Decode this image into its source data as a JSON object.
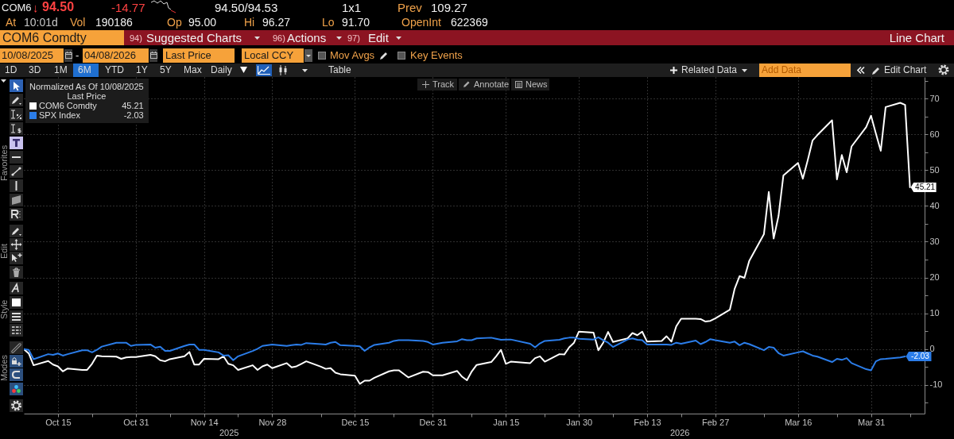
{
  "chart_data": {
    "type": "line",
    "legend_title": "Normalized As Of 10/08/2025\nLast Price",
    "legend": "top left",
    "grid": true,
    "xlim": [
      "2025-10-08",
      "2026-04-11"
    ],
    "xticks": [
      {
        "value": "2025-10-15",
        "label": "Oct 15"
      },
      {
        "value": "2025-10-22",
        "label": null
      },
      {
        "value": "2025-10-31",
        "label": "Oct 31"
      },
      {
        "value": "2025-11-07",
        "label": null
      },
      {
        "value": "2025-11-14",
        "label": "Nov 14"
      },
      {
        "value": "2025-11-21",
        "label": null
      },
      {
        "value": "2025-11-28",
        "label": "Nov 28"
      },
      {
        "value": "2025-12-08",
        "label": null
      },
      {
        "value": "2025-12-15",
        "label": "Dec 15"
      },
      {
        "value": "2025-12-23",
        "label": null
      },
      {
        "value": "2025-12-31",
        "label": "Dec 31"
      },
      {
        "value": "2026-01-08",
        "label": null
      },
      {
        "value": "2026-01-15",
        "label": "Jan 15"
      },
      {
        "value": "2026-01-23",
        "label": null
      },
      {
        "value": "2026-01-30",
        "label": "Jan 30"
      },
      {
        "value": "2026-02-06",
        "label": null
      },
      {
        "value": "2026-02-13",
        "label": "Feb 13"
      },
      {
        "value": "2026-02-20",
        "label": null
      },
      {
        "value": "2026-02-27",
        "label": "Feb 27"
      },
      {
        "value": "2026-03-09",
        "label": null
      },
      {
        "value": "2026-03-16",
        "label": "Mar 16"
      },
      {
        "value": "2026-03-24",
        "label": null
      },
      {
        "value": "2026-03-31",
        "label": "Mar 31"
      },
      {
        "value": "2026-04-08",
        "label": null
      }
    ],
    "ylim": [
      -18,
      76
    ],
    "yticks": [
      {
        "value": -15,
        "label": null
      },
      -10,
      {
        "value": -5,
        "label": null
      },
      0,
      {
        "value": 5,
        "label": null
      },
      10,
      {
        "value": 15,
        "label": null
      },
      20,
      {
        "value": 25,
        "label": null
      },
      30,
      {
        "value": 35,
        "label": null
      },
      40,
      {
        "value": 45,
        "label": null
      },
      50,
      {
        "value": 55,
        "label": null
      },
      60,
      {
        "value": 65,
        "label": null
      },
      70,
      {
        "value": 75,
        "label": null
      }
    ],
    "series": [
      {
        "name": "COM6 Comdty",
        "color": "#ffffff",
        "x": [
          "2025-10-08",
          "2025-10-09",
          "2025-10-10",
          "2025-10-13",
          "2025-10-14",
          "2025-10-15",
          "2025-10-16",
          "2025-10-17",
          "2025-10-20",
          "2025-10-21",
          "2025-10-22",
          "2025-10-23",
          "2025-10-24",
          "2025-10-27",
          "2025-10-28",
          "2025-10-29",
          "2025-10-30",
          "2025-10-31",
          "2025-11-03",
          "2025-11-04",
          "2025-11-05",
          "2025-11-06",
          "2025-11-07",
          "2025-11-10",
          "2025-11-11",
          "2025-11-12",
          "2025-11-13",
          "2025-11-14",
          "2025-11-17",
          "2025-11-18",
          "2025-11-19",
          "2025-11-20",
          "2025-11-21",
          "2025-11-24",
          "2025-11-25",
          "2025-11-26",
          "2025-11-27",
          "2025-11-28",
          "2025-12-01",
          "2025-12-02",
          "2025-12-03",
          "2025-12-04",
          "2025-12-05",
          "2025-12-08",
          "2025-12-09",
          "2025-12-10",
          "2025-12-11",
          "2025-12-12",
          "2025-12-15",
          "2025-12-16",
          "2025-12-17",
          "2025-12-18",
          "2025-12-19",
          "2025-12-22",
          "2025-12-23",
          "2025-12-24",
          "2025-12-26",
          "2025-12-29",
          "2025-12-30",
          "2025-12-31",
          "2026-01-02",
          "2026-01-05",
          "2026-01-06",
          "2026-01-07",
          "2026-01-08",
          "2026-01-09",
          "2026-01-12",
          "2026-01-13",
          "2026-01-14",
          "2026-01-15",
          "2026-01-16",
          "2026-01-20",
          "2026-01-21",
          "2026-01-22",
          "2026-01-23",
          "2026-01-26",
          "2026-01-27",
          "2026-01-28",
          "2026-01-29",
          "2026-01-30",
          "2026-02-02",
          "2026-02-03",
          "2026-02-04",
          "2026-02-05",
          "2026-02-06",
          "2026-02-09",
          "2026-02-10",
          "2026-02-11",
          "2026-02-12",
          "2026-02-13",
          "2026-02-16",
          "2026-02-17",
          "2026-02-18",
          "2026-02-19",
          "2026-02-20",
          "2026-02-23",
          "2026-02-24",
          "2026-02-25",
          "2026-02-26",
          "2026-02-27",
          "2026-03-02",
          "2026-03-03",
          "2026-03-04",
          "2026-03-05",
          "2026-03-06",
          "2026-03-09",
          "2026-03-10",
          "2026-03-11",
          "2026-03-12",
          "2026-03-13",
          "2026-03-16",
          "2026-03-17",
          "2026-03-18",
          "2026-03-19",
          "2026-03-20",
          "2026-03-23",
          "2026-03-24",
          "2026-03-25",
          "2026-03-26",
          "2026-03-27",
          "2026-03-30",
          "2026-03-31",
          "2026-04-01",
          "2026-04-02",
          "2026-04-03",
          "2026-04-06",
          "2026-04-07",
          "2026-04-08"
        ],
        "values": [
          0,
          -1.2,
          -4.5,
          -3.3,
          -4.3,
          -4.8,
          -6.2,
          -5.4,
          -5.8,
          -5.8,
          -4.1,
          -1.8,
          -2.0,
          -2.1,
          -2.7,
          -2.3,
          -2.2,
          -2.2,
          -1.6,
          -2.0,
          -3.1,
          -3.4,
          -2.8,
          -2.0,
          -0.8,
          -4.3,
          -4.3,
          -2.7,
          -2.8,
          -2.0,
          -4.1,
          -4.5,
          -5.8,
          -4.5,
          -5.8,
          -4.8,
          -4.3,
          -5.3,
          -3.9,
          -5.1,
          -4.8,
          -4.1,
          -3.4,
          -4.9,
          -5.5,
          -5.3,
          -6.6,
          -7.0,
          -7.4,
          -9.7,
          -8.8,
          -8.8,
          -8.0,
          -6.2,
          -5.9,
          -5.9,
          -7.9,
          -6.3,
          -6.4,
          -7.3,
          -7.3,
          -6.1,
          -7.7,
          -8.7,
          -6.2,
          -4.4,
          -3.6,
          -2.0,
          -0.2,
          -4.1,
          -3.5,
          -3.9,
          -2.5,
          -2.0,
          -3.5,
          -1.4,
          -1.5,
          0.5,
          1.8,
          4.9,
          4.6,
          -0.3,
          1.8,
          4.8,
          2.0,
          3.0,
          4.5,
          3.9,
          4.9,
          2.1,
          2.3,
          3.6,
          2.1,
          6.4,
          8.5,
          8.5,
          8.4,
          7.7,
          7.9,
          8.6,
          11.0,
          16.9,
          20.4,
          19.9,
          24.7,
          32.1,
          43.9,
          30.9,
          37.2,
          48.5,
          52.0,
          47.6,
          52.8,
          58.3,
          59.8,
          63.9,
          47.4,
          54.2,
          49.4,
          56.6,
          62.0,
          65.2,
          60.2,
          55.4,
          67.6,
          68.8,
          68.2,
          45.21
        ],
        "value_labels": [
          null,
          null,
          null,
          null,
          null,
          null,
          null,
          null,
          null,
          null,
          null,
          null,
          null,
          null,
          null,
          null,
          null,
          null,
          null,
          null,
          null,
          null,
          null,
          null,
          null,
          null,
          null,
          null,
          null,
          null,
          null,
          null,
          null,
          null,
          null,
          null,
          null,
          null,
          null,
          null,
          null,
          null,
          null,
          null,
          null,
          null,
          null,
          null,
          null,
          null,
          null,
          null,
          null,
          null,
          null,
          null,
          null,
          null,
          null,
          null,
          null,
          null,
          null,
          null,
          null,
          null,
          null,
          null,
          null,
          null,
          null,
          null,
          null,
          null,
          null,
          null,
          null,
          null,
          null,
          null,
          null,
          null,
          null,
          null,
          null,
          null,
          null,
          null,
          null,
          null,
          null,
          null,
          null,
          null,
          null,
          null,
          null,
          null,
          null,
          null,
          null,
          null,
          null,
          null,
          null,
          null,
          null,
          null,
          null,
          null,
          null,
          null,
          null,
          null,
          null,
          null,
          null,
          null,
          null,
          null,
          null,
          null,
          null,
          null,
          null,
          null,
          null,
          "45.21"
        ]
      },
      {
        "name": "SPX Index",
        "color": "#2b7de9",
        "x": [
          "2025-10-08",
          "2025-10-09",
          "2025-10-10",
          "2025-10-13",
          "2025-10-14",
          "2025-10-15",
          "2025-10-16",
          "2025-10-17",
          "2025-10-20",
          "2025-10-21",
          "2025-10-22",
          "2025-10-23",
          "2025-10-24",
          "2025-10-27",
          "2025-10-28",
          "2025-10-29",
          "2025-10-30",
          "2025-10-31",
          "2025-11-03",
          "2025-11-04",
          "2025-11-05",
          "2025-11-06",
          "2025-11-07",
          "2025-11-10",
          "2025-11-11",
          "2025-11-12",
          "2025-11-13",
          "2025-11-14",
          "2025-11-17",
          "2025-11-18",
          "2025-11-19",
          "2025-11-20",
          "2025-11-21",
          "2025-11-24",
          "2025-11-25",
          "2025-11-26",
          "2025-11-28",
          "2025-12-01",
          "2025-12-02",
          "2025-12-03",
          "2025-12-04",
          "2025-12-05",
          "2025-12-08",
          "2025-12-09",
          "2025-12-10",
          "2025-12-11",
          "2025-12-12",
          "2025-12-15",
          "2025-12-16",
          "2025-12-17",
          "2025-12-18",
          "2025-12-19",
          "2025-12-22",
          "2025-12-23",
          "2025-12-24",
          "2025-12-26",
          "2025-12-29",
          "2025-12-30",
          "2025-12-31",
          "2026-01-02",
          "2026-01-05",
          "2026-01-06",
          "2026-01-07",
          "2026-01-08",
          "2026-01-09",
          "2026-01-12",
          "2026-01-13",
          "2026-01-14",
          "2026-01-15",
          "2026-01-16",
          "2026-01-20",
          "2026-01-21",
          "2026-01-22",
          "2026-01-23",
          "2026-01-26",
          "2026-01-27",
          "2026-01-28",
          "2026-01-29",
          "2026-01-30",
          "2026-02-02",
          "2026-02-03",
          "2026-02-04",
          "2026-02-05",
          "2026-02-06",
          "2026-02-09",
          "2026-02-10",
          "2026-02-11",
          "2026-02-12",
          "2026-02-13",
          "2026-02-17",
          "2026-02-18",
          "2026-02-19",
          "2026-02-20",
          "2026-02-23",
          "2026-02-24",
          "2026-02-25",
          "2026-02-26",
          "2026-02-27",
          "2026-03-02",
          "2026-03-03",
          "2026-03-04",
          "2026-03-05",
          "2026-03-06",
          "2026-03-09",
          "2026-03-10",
          "2026-03-11",
          "2026-03-12",
          "2026-03-13",
          "2026-03-16",
          "2026-03-17",
          "2026-03-18",
          "2026-03-19",
          "2026-03-20",
          "2026-03-23",
          "2026-03-24",
          "2026-03-25",
          "2026-03-26",
          "2026-03-27",
          "2026-03-30",
          "2026-03-31",
          "2026-04-01",
          "2026-04-02",
          "2026-04-03",
          "2026-04-06",
          "2026-04-07"
        ],
        "values": [
          0,
          -0.2,
          -2.8,
          -1.4,
          -1.6,
          -1.2,
          -1.8,
          -1.4,
          -0.3,
          -0.3,
          -0.9,
          -0.2,
          0.7,
          1.8,
          1.8,
          1.8,
          0.9,
          1.2,
          1.3,
          0.4,
          0.7,
          -0.5,
          -0.5,
          0.9,
          1.3,
          1.3,
          -0.2,
          -0.2,
          -0.9,
          -1.8,
          -1.7,
          -3.1,
          -2.0,
          -0.5,
          0.1,
          0.9,
          1.3,
          0.9,
          1.1,
          1.3,
          1.2,
          1.7,
          1.4,
          1.3,
          1.8,
          2.0,
          1.1,
          0.9,
          0.8,
          -0.5,
          0.5,
          1.2,
          1.8,
          2.3,
          2.5,
          2.5,
          2.3,
          2.0,
          1.3,
          1.8,
          2.2,
          2.8,
          2.5,
          2.5,
          3.0,
          3.2,
          2.9,
          2.6,
          2.7,
          2.7,
          1.5,
          0.5,
          1.6,
          2.3,
          2.6,
          3.0,
          3.2,
          3.2,
          2.9,
          2.7,
          3.3,
          2.5,
          1.8,
          0.6,
          2.7,
          3.0,
          2.6,
          2.5,
          1.3,
          1.3,
          1.2,
          1.8,
          1.5,
          2.4,
          1.4,
          2.0,
          2.8,
          2.5,
          1.8,
          2.1,
          1.1,
          1.8,
          1.4,
          -0.3,
          0.6,
          0.4,
          -1.1,
          -1.8,
          -0.9,
          -0.6,
          -1.2,
          -1.8,
          -2.1,
          -3.6,
          -2.7,
          -3.0,
          -2.5,
          -3.9,
          -5.6,
          -5.9,
          -3.4,
          -2.8,
          -2.7,
          -2.3,
          -2.03
        ],
        "value_labels": [
          null,
          null,
          null,
          null,
          null,
          null,
          null,
          null,
          null,
          null,
          null,
          null,
          null,
          null,
          null,
          null,
          null,
          null,
          null,
          null,
          null,
          null,
          null,
          null,
          null,
          null,
          null,
          null,
          null,
          null,
          null,
          null,
          null,
          null,
          null,
          null,
          null,
          null,
          null,
          null,
          null,
          null,
          null,
          null,
          null,
          null,
          null,
          null,
          null,
          null,
          null,
          null,
          null,
          null,
          null,
          null,
          null,
          null,
          null,
          null,
          null,
          null,
          null,
          null,
          null,
          null,
          null,
          null,
          null,
          null,
          null,
          null,
          null,
          null,
          null,
          null,
          null,
          null,
          null,
          null,
          null,
          null,
          null,
          null,
          null,
          null,
          null,
          null,
          null,
          null,
          null,
          null,
          null,
          null,
          null,
          null,
          null,
          null,
          null,
          null,
          null,
          null,
          null,
          null,
          null,
          null,
          null,
          null,
          null,
          null,
          null,
          null,
          null,
          null,
          null,
          null,
          null,
          null,
          null,
          null,
          null,
          null,
          null,
          null,
          "-2.03"
        ]
      }
    ],
    "annotations": [
      "COM6",
      "↓",
      "94.50",
      "-14.77",
      "94.50/94.53",
      "1x1",
      "Prev",
      "109.27",
      "At",
      "10:01d",
      "Vol",
      "190186",
      "Op",
      "95.00",
      "Hi",
      "96.27",
      "Lo",
      "91.70",
      "OpenInt",
      "622369",
      "COM6 Comdty",
      "94)",
      "Suggested Charts",
      "96)",
      "Actions",
      "97)",
      "Edit",
      "Line Chart",
      "10/08/2025",
      "-",
      "04/08/2026",
      "Last Price",
      "Local CCY",
      "Mov Avgs",
      "Key Events",
      "1D",
      "3D",
      "1M",
      "6M",
      "YTD",
      "1Y",
      "5Y",
      "Max",
      "Daily",
      "Table",
      "Related Data",
      "Add Data",
      "Edit Chart",
      "Track",
      "Annotate",
      "News",
      "Favorites",
      "Edit",
      "Style",
      "Modes",
      "2025",
      "2026"
    ]
  }
}
